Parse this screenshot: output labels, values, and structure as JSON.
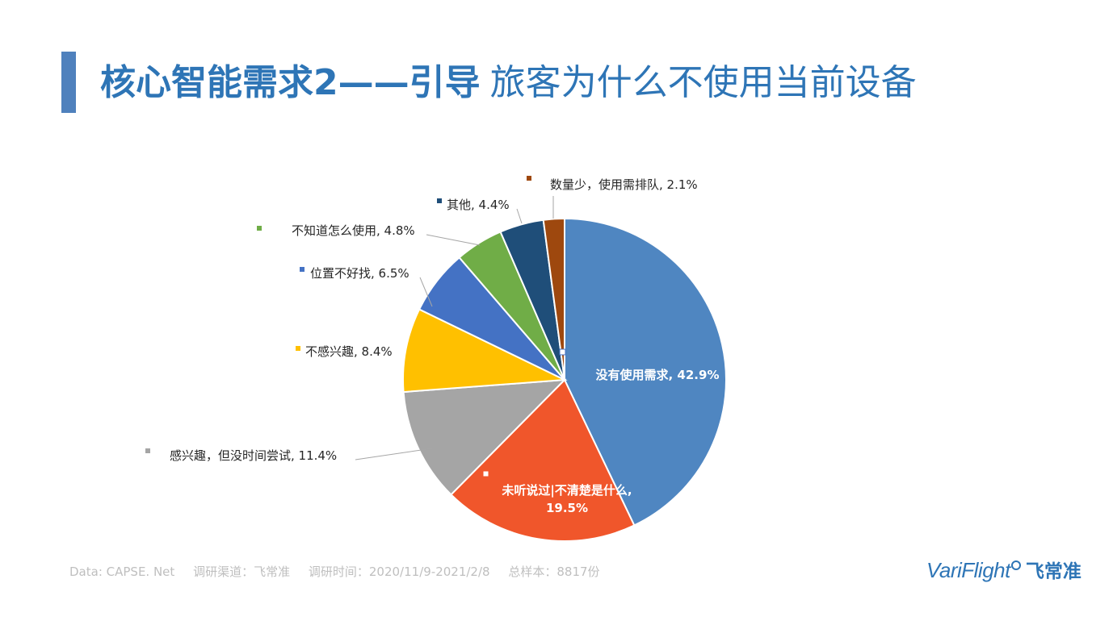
{
  "header": {
    "title_bold": "核心智能需求2——引导",
    "title_rest": "旅客为什么不使用当前设备"
  },
  "colors": {
    "accent": "#2e75b6",
    "title_bar": "#4f81bd",
    "footer_text": "#bfbfbf"
  },
  "footer": {
    "source": "Data: CAPSE. Net",
    "channel": "调研渠道：飞常准",
    "period": "调研时间：2020/11/9-2021/2/8",
    "sample": "总样本：8817份"
  },
  "logo": {
    "text_en": "VariFlight",
    "text_cn": "飞常准"
  },
  "chart_data": {
    "type": "pie",
    "title": "",
    "unit": "%",
    "start_angle_deg": 0,
    "direction": "clockwise",
    "slices": [
      {
        "label": "没有使用需求, 42.9%",
        "name": "没有使用需求",
        "value": 42.9,
        "color": "#4f86c1",
        "label_position": "inside"
      },
      {
        "label": "未听说过|不清楚是什么, 19.5%",
        "name": "未听说过|不清楚是什么",
        "value": 19.5,
        "color": "#f0562b",
        "label_position": "inside"
      },
      {
        "label": "感兴趣，但没时间尝试, 11.4%",
        "name": "感兴趣，但没时间尝试",
        "value": 11.4,
        "color": "#a5a5a5",
        "label_position": "outside"
      },
      {
        "label": "不感兴趣, 8.4%",
        "name": "不感兴趣",
        "value": 8.4,
        "color": "#ffc000",
        "label_position": "outside"
      },
      {
        "label": "位置不好找, 6.5%",
        "name": "位置不好找",
        "value": 6.5,
        "color": "#4472c4",
        "label_position": "outside"
      },
      {
        "label": "不知道怎么使用, 4.8%",
        "name": "不知道怎么使用",
        "value": 4.8,
        "color": "#70ad47",
        "label_position": "outside"
      },
      {
        "label": "其他, 4.4%",
        "name": "其他",
        "value": 4.4,
        "color": "#1f4e79",
        "label_position": "outside"
      },
      {
        "label": "数量少，使用需排队, 2.1%",
        "name": "数量少，使用需排队",
        "value": 2.1,
        "color": "#9e480e",
        "label_position": "outside"
      }
    ]
  }
}
